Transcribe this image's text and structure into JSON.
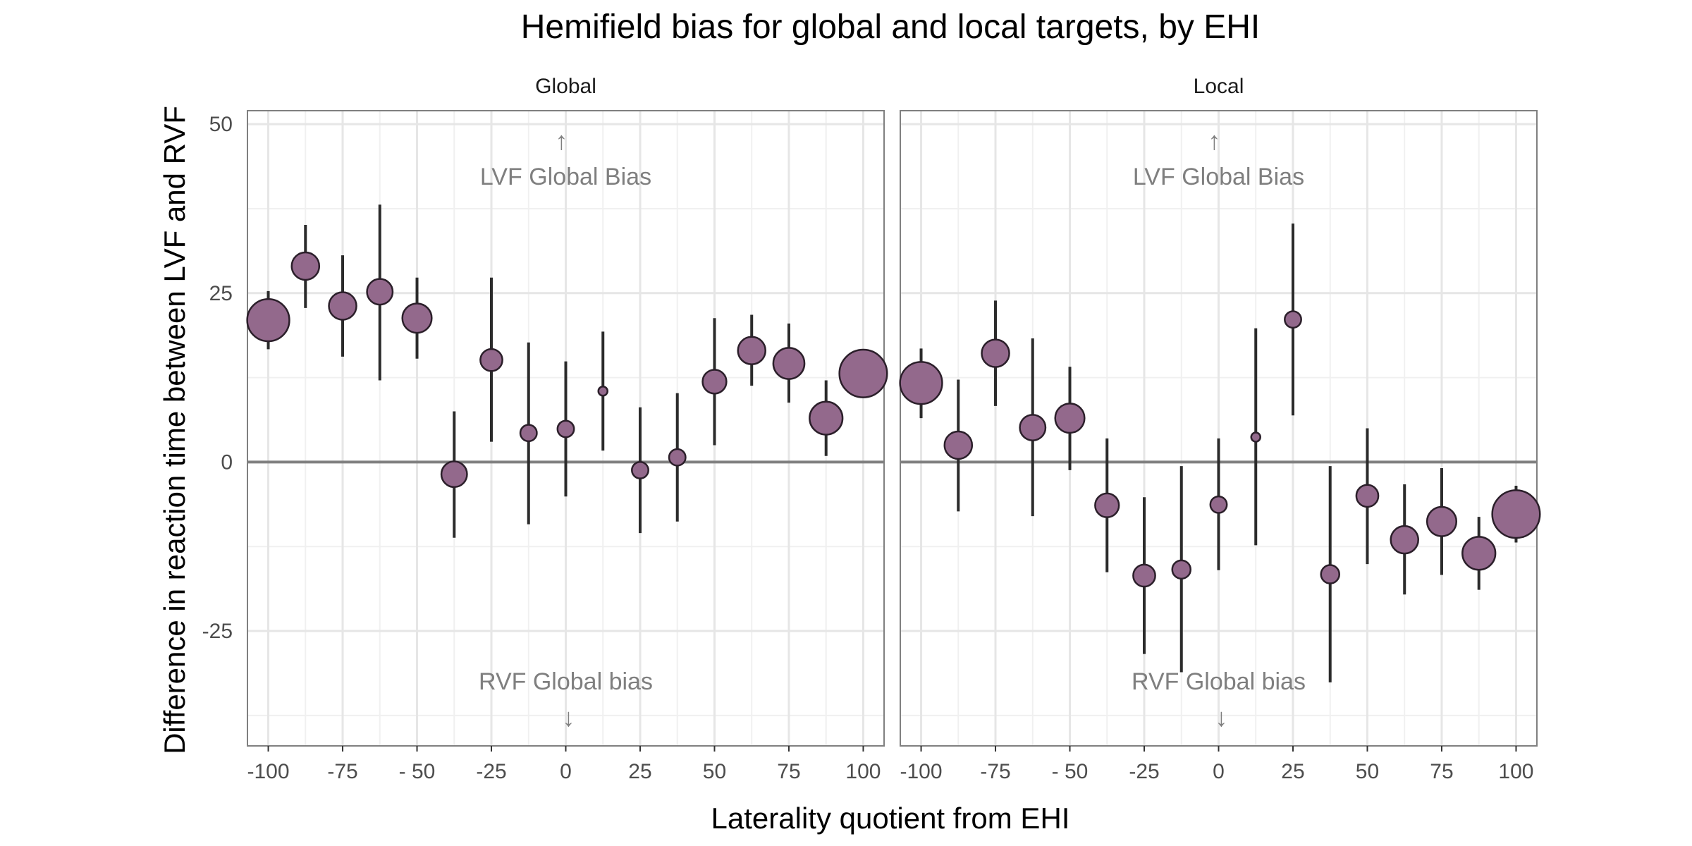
{
  "chart_data": {
    "type": "scatter",
    "title": "Hemifield bias for global and local targets, by EHI",
    "xlabel": "Laterality quotient from EHI",
    "ylabel": "Difference in reaction time between LVF and RVF",
    "xlim": [
      -107,
      107
    ],
    "ylim": [
      -42,
      52
    ],
    "x_ticks": [
      -100,
      -75,
      -50,
      -25,
      0,
      25,
      50,
      75,
      100
    ],
    "x_tick_labels": [
      "-100",
      "-75",
      "- 50",
      "-25",
      "0",
      "25",
      "50",
      "75",
      "100"
    ],
    "y_ticks": [
      50,
      25,
      0,
      -25
    ],
    "y_tick_labels": [
      "50",
      "25",
      "0",
      "-25"
    ],
    "reference_line_y": 0,
    "grid": true,
    "point_color": "#93698c",
    "point_stroke": "#2b1f2a",
    "errorbar_color": "#2b2b2b",
    "reference_line_color": "#808080",
    "annotation_color": "#7f7f7f",
    "panels": [
      {
        "name": "Global",
        "annotation_top": "LVF Global Bias",
        "annotation_bottom": "RVF Global bias",
        "arrow_up": "↑",
        "arrow_down": "↓",
        "points": [
          {
            "x": -100,
            "y": 21,
            "lo": 16.7,
            "hi": 25.3,
            "size": 2.3
          },
          {
            "x": -87.5,
            "y": 29,
            "lo": 22.8,
            "hi": 35.1,
            "size": 1.5
          },
          {
            "x": -75,
            "y": 23.1,
            "lo": 15.6,
            "hi": 30.6,
            "size": 1.5
          },
          {
            "x": -62.5,
            "y": 25.2,
            "lo": 12.1,
            "hi": 38.1,
            "size": 1.4
          },
          {
            "x": -50,
            "y": 21.3,
            "lo": 15.3,
            "hi": 27.3,
            "size": 1.6
          },
          {
            "x": -37.5,
            "y": -1.8,
            "lo": -11.2,
            "hi": 7.5,
            "size": 1.4
          },
          {
            "x": -25,
            "y": 15.1,
            "lo": 3,
            "hi": 27.3,
            "size": 1.2
          },
          {
            "x": -12.5,
            "y": 4.3,
            "lo": -9.2,
            "hi": 17.7,
            "size": 0.9
          },
          {
            "x": 0,
            "y": 4.9,
            "lo": -5.1,
            "hi": 14.9,
            "size": 0.9
          },
          {
            "x": 12.5,
            "y": 10.5,
            "lo": 1.7,
            "hi": 19.3,
            "size": 0.5
          },
          {
            "x": 25,
            "y": -1.2,
            "lo": -10.5,
            "hi": 8.1,
            "size": 0.9
          },
          {
            "x": 37.5,
            "y": 0.7,
            "lo": -8.8,
            "hi": 10.2,
            "size": 0.9
          },
          {
            "x": 50,
            "y": 11.9,
            "lo": 2.5,
            "hi": 21.3,
            "size": 1.3
          },
          {
            "x": 62.5,
            "y": 16.5,
            "lo": 11.3,
            "hi": 21.8,
            "size": 1.5
          },
          {
            "x": 75,
            "y": 14.6,
            "lo": 8.8,
            "hi": 20.5,
            "size": 1.7
          },
          {
            "x": 87.5,
            "y": 6.5,
            "lo": 0.9,
            "hi": 12.1,
            "size": 1.8
          },
          {
            "x": 100,
            "y": 13.1,
            "lo": 9.5,
            "hi": 16.7,
            "size": 2.6
          }
        ]
      },
      {
        "name": "Local",
        "annotation_top": "LVF Global Bias",
        "annotation_bottom": "RVF Global bias",
        "arrow_up": "↑",
        "arrow_down": "↓",
        "points": [
          {
            "x": -100,
            "y": 11.7,
            "lo": 6.5,
            "hi": 16.8,
            "size": 2.3
          },
          {
            "x": -87.5,
            "y": 2.5,
            "lo": -7.3,
            "hi": 12.2,
            "size": 1.5
          },
          {
            "x": -75,
            "y": 16.1,
            "lo": 8.3,
            "hi": 23.9,
            "size": 1.5
          },
          {
            "x": -62.5,
            "y": 5.1,
            "lo": -8,
            "hi": 18.3,
            "size": 1.4
          },
          {
            "x": -50,
            "y": 6.5,
            "lo": -1.2,
            "hi": 14.1,
            "size": 1.6
          },
          {
            "x": -37.5,
            "y": -6.4,
            "lo": -16.3,
            "hi": 3.5,
            "size": 1.3
          },
          {
            "x": -25,
            "y": -16.8,
            "lo": -28.4,
            "hi": -5.2,
            "size": 1.2
          },
          {
            "x": -12.5,
            "y": -15.9,
            "lo": -31.1,
            "hi": -0.6,
            "size": 1
          },
          {
            "x": 0,
            "y": -6.3,
            "lo": -16,
            "hi": 3.5,
            "size": 0.9
          },
          {
            "x": 12.5,
            "y": 3.7,
            "lo": -12.3,
            "hi": 19.8,
            "size": 0.5
          },
          {
            "x": 25,
            "y": 21.1,
            "lo": 6.9,
            "hi": 35.3,
            "size": 0.9
          },
          {
            "x": 37.5,
            "y": -16.6,
            "lo": -32.6,
            "hi": -0.6,
            "size": 1
          },
          {
            "x": 50,
            "y": -5,
            "lo": -15.1,
            "hi": 5,
            "size": 1.2
          },
          {
            "x": 62.5,
            "y": -11.5,
            "lo": -19.6,
            "hi": -3.3,
            "size": 1.5
          },
          {
            "x": 75,
            "y": -8.8,
            "lo": -16.7,
            "hi": -0.9,
            "size": 1.6
          },
          {
            "x": 87.5,
            "y": -13.5,
            "lo": -18.9,
            "hi": -8.1,
            "size": 1.8
          },
          {
            "x": 100,
            "y": -7.7,
            "lo": -11.9,
            "hi": -3.5,
            "size": 2.6
          }
        ]
      }
    ]
  }
}
